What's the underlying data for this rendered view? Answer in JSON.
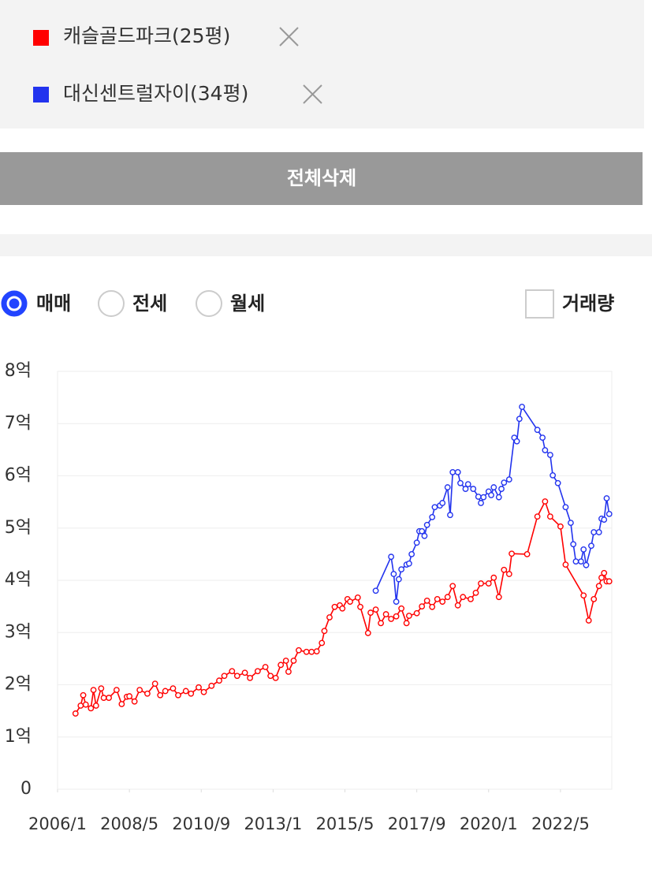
{
  "selection": {
    "button": "전체삭제"
  },
  "filters": {
    "options": [
      "매매",
      "전세",
      "월세"
    ],
    "checkbox": "거래량"
  },
  "chart_data": {
    "type": "line",
    "ylim": [
      0,
      8
    ],
    "yticks": [
      0,
      {
        "value": 1,
        "label": "1억"
      },
      {
        "value": 2,
        "label": "2억"
      },
      {
        "value": 3,
        "label": "3억"
      },
      {
        "value": 4,
        "label": "4억"
      },
      {
        "value": 5,
        "label": "5억"
      },
      {
        "value": 6,
        "label": "6억"
      },
      {
        "value": 7,
        "label": "7억"
      },
      {
        "value": 8,
        "label": "8억"
      }
    ],
    "xlim": [
      "2006/1",
      "2024/1"
    ],
    "xticks": [
      "2006/1",
      "2008/5",
      "2010/9",
      "2013/1",
      "2015/5",
      "2017/9",
      "2020/1",
      "2022/5"
    ],
    "grid": true,
    "series": [
      {
        "name": "캐슬골드파크(25평)",
        "color": "#ff0000",
        "x": [
          "2006/8",
          "2006/10",
          "2006/11",
          "2006/12",
          "2007/2",
          "2007/3",
          "2007/4",
          "2007/6",
          "2007/7",
          "2007/9",
          "2007/12",
          "2008/2",
          "2008/4",
          "2008/5",
          "2008/7",
          "2008/9",
          "2008/12",
          "2009/3",
          "2009/5",
          "2009/7",
          "2009/10",
          "2009/12",
          "2010/3",
          "2010/5",
          "2010/8",
          "2010/10",
          "2011/1",
          "2011/4",
          "2011/6",
          "2011/9",
          "2011/11",
          "2012/2",
          "2012/4",
          "2012/7",
          "2012/10",
          "2012/12",
          "2013/2",
          "2013/4",
          "2013/6",
          "2013/7",
          "2013/9",
          "2013/11",
          "2014/2",
          "2014/4",
          "2014/6",
          "2014/8",
          "2014/9",
          "2014/11",
          "2015/1",
          "2015/3",
          "2015/4",
          "2015/6",
          "2015/7",
          "2015/10",
          "2015/11",
          "2016/2",
          "2016/3",
          "2016/5",
          "2016/7",
          "2016/9",
          "2016/11",
          "2017/1",
          "2017/3",
          "2017/5",
          "2017/6",
          "2017/9",
          "2017/11",
          "2018/1",
          "2018/3",
          "2018/5",
          "2018/7",
          "2018/9",
          "2018/11",
          "2019/1",
          "2019/3",
          "2019/6",
          "2019/8",
          "2019/10",
          "2020/1",
          "2020/3",
          "2020/5",
          "2020/7",
          "2020/9",
          "2020/10",
          "2021/4",
          "2021/8",
          "2021/11",
          "2022/1",
          "2022/5",
          "2022/7",
          "2023/2",
          "2023/4",
          "2023/6",
          "2023/8",
          "2023/9",
          "2023/10",
          "2023/11",
          "2023/12"
        ],
        "values": [
          1.45,
          1.6,
          1.8,
          1.62,
          1.55,
          1.9,
          1.6,
          1.93,
          1.75,
          1.75,
          1.9,
          1.63,
          1.77,
          1.78,
          1.68,
          1.9,
          1.83,
          2.02,
          1.8,
          1.88,
          1.93,
          1.8,
          1.88,
          1.83,
          1.95,
          1.86,
          1.98,
          2.08,
          2.17,
          2.26,
          2.17,
          2.23,
          2.13,
          2.26,
          2.34,
          2.17,
          2.13,
          2.38,
          2.46,
          2.25,
          2.46,
          2.66,
          2.63,
          2.63,
          2.64,
          2.8,
          3.03,
          3.29,
          3.49,
          3.52,
          3.46,
          3.64,
          3.59,
          3.67,
          3.49,
          2.99,
          3.38,
          3.44,
          3.18,
          3.35,
          3.26,
          3.31,
          3.46,
          3.18,
          3.32,
          3.37,
          3.5,
          3.61,
          3.49,
          3.64,
          3.59,
          3.68,
          3.89,
          3.52,
          3.68,
          3.64,
          3.76,
          3.94,
          3.94,
          4.05,
          3.68,
          4.2,
          4.12,
          4.51,
          4.5,
          5.22,
          5.51,
          5.22,
          5.03,
          4.3,
          3.71,
          3.23,
          3.64,
          3.89,
          4.05,
          4.14,
          3.98,
          3.98
        ]
      },
      {
        "name": "대신센트럴자이(34평)",
        "color": "#2233ee",
        "x": [
          "2016/5",
          "2016/11",
          "2016/12",
          "2017/1",
          "2017/2",
          "2017/3",
          "2017/5",
          "2017/6",
          "2017/7",
          "2017/9",
          "2017/10",
          "2017/11",
          "2017/12",
          "2018/1",
          "2018/3",
          "2018/4",
          "2018/6",
          "2018/7",
          "2018/9",
          "2018/10",
          "2018/11",
          "2019/1",
          "2019/2",
          "2019/4",
          "2019/5",
          "2019/7",
          "2019/9",
          "2019/10",
          "2019/11",
          "2020/1",
          "2020/2",
          "2020/3",
          "2020/5",
          "2020/6",
          "2020/7",
          "2020/9",
          "2020/11",
          "2020/12",
          "2021/1",
          "2021/2",
          "2021/8",
          "2021/10",
          "2021/11",
          "2022/1",
          "2022/2",
          "2022/4",
          "2022/7",
          "2022/9",
          "2022/10",
          "2022/11",
          "2023/1",
          "2023/2",
          "2023/3",
          "2023/5",
          "2023/6",
          "2023/8",
          "2023/9",
          "2023/10",
          "2023/11",
          "2023/12"
        ],
        "values": [
          3.8,
          4.45,
          4.12,
          3.59,
          4.02,
          4.21,
          4.3,
          4.32,
          4.5,
          4.72,
          4.94,
          4.94,
          4.85,
          5.06,
          5.21,
          5.4,
          5.43,
          5.48,
          5.78,
          5.25,
          6.07,
          6.07,
          5.86,
          5.75,
          5.84,
          5.75,
          5.6,
          5.48,
          5.59,
          5.7,
          5.63,
          5.78,
          5.59,
          5.75,
          5.87,
          5.93,
          6.73,
          6.66,
          7.09,
          7.32,
          6.88,
          6.73,
          6.49,
          6.4,
          6.01,
          5.86,
          5.4,
          5.1,
          4.69,
          4.36,
          4.36,
          4.59,
          4.29,
          4.66,
          4.92,
          4.92,
          5.18,
          5.16,
          5.57,
          5.27
        ]
      }
    ]
  }
}
